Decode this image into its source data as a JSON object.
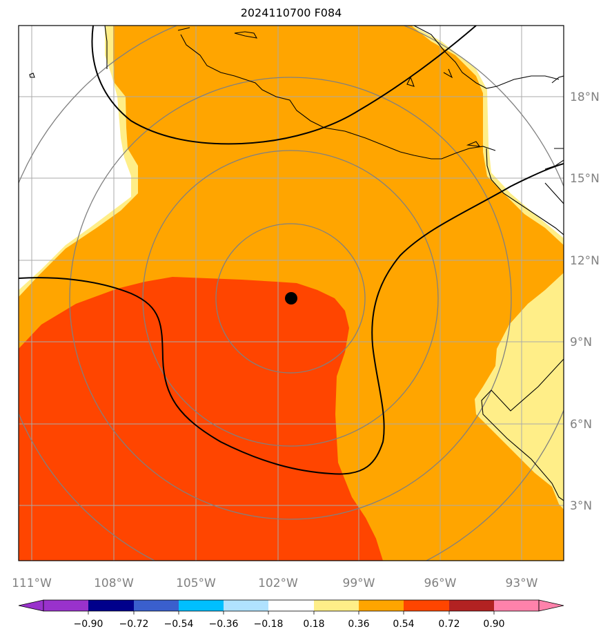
{
  "title": "2024110700 F084",
  "map": {
    "lon_labels": [
      "111°W",
      "108°W",
      "105°W",
      "102°W",
      "99°W",
      "96°W",
      "93°W"
    ],
    "lat_labels": [
      "18°N",
      "15°N",
      "12°N",
      "9°N",
      "6°N",
      "3°N"
    ],
    "center_marker": {
      "lon": -101.5,
      "lat": 10.6
    },
    "fill_colors": {
      "0.18-0.36": "#ffee88",
      "0.36-0.54": "#ffa500",
      "0.54-0.72": "#ff4500"
    }
  },
  "colorbar": {
    "colors": [
      "#9932cc",
      "#00008b",
      "#3a5fcd",
      "#00bfff",
      "#b0e2ff",
      "#ffffff",
      "#ffee88",
      "#ffa500",
      "#ff4500",
      "#b22222",
      "#ff82ab"
    ],
    "labels": [
      "−0.90",
      "−0.72",
      "−0.54",
      "−0.36",
      "−0.18",
      "0.18",
      "0.36",
      "0.54",
      "0.72",
      "0.90"
    ]
  }
}
